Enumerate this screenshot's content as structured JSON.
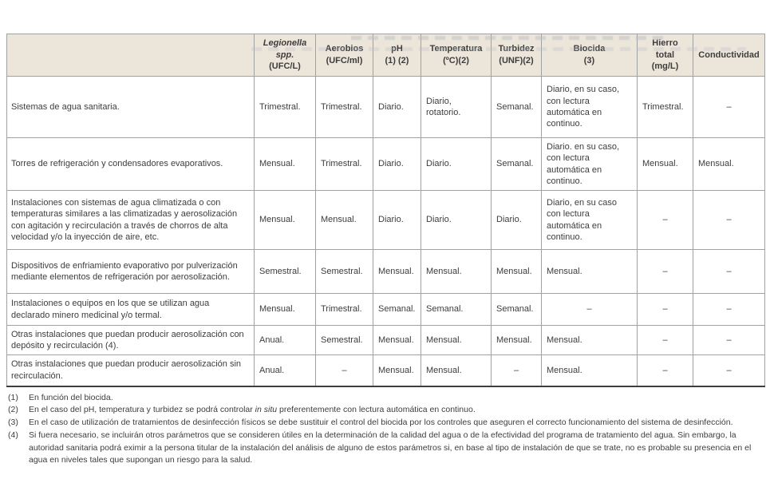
{
  "table": {
    "header": [
      {
        "lines": []
      },
      {
        "lines": [
          {
            "text": "Legionella",
            "italic": true
          },
          {
            "text": "spp.",
            "italic": true
          },
          {
            "text": "(UFC/L)",
            "italic": false
          }
        ]
      },
      {
        "lines": [
          {
            "text": "Aerobios",
            "italic": false
          },
          {
            "text": "(UFC/ml)",
            "italic": false
          }
        ]
      },
      {
        "lines": [
          {
            "text": "pH",
            "italic": false
          },
          {
            "text": "(1) (2)",
            "italic": false
          }
        ]
      },
      {
        "lines": [
          {
            "text": "Temperatura",
            "italic": false
          },
          {
            "text": "(ºC)(2)",
            "italic": false
          }
        ]
      },
      {
        "lines": [
          {
            "text": "Turbidez",
            "italic": false
          },
          {
            "text": "(UNF)(2)",
            "italic": false
          }
        ]
      },
      {
        "lines": [
          {
            "text": "Biocida",
            "italic": false
          },
          {
            "text": "(3)",
            "italic": false
          }
        ]
      },
      {
        "lines": [
          {
            "text": "Hierro",
            "italic": false
          },
          {
            "text": "total",
            "italic": false
          },
          {
            "text": "(mg/L)",
            "italic": false
          }
        ]
      },
      {
        "lines": [
          {
            "text": "Conductividad",
            "italic": false
          }
        ]
      }
    ],
    "rows": [
      {
        "label": "Sistemas de agua sanitaria.",
        "values": [
          "Trimestral.",
          "Trimestral.",
          "Diario.",
          "Diario, rotatorio.",
          "Semanal.",
          "Diario, en su caso, con lectura automática en continuo.",
          "Trimestral.",
          "–"
        ]
      },
      {
        "label": "Torres de refrigeración y condensadores evaporativos.",
        "values": [
          "Mensual.",
          "Trimestral.",
          "Diario.",
          "Diario.",
          "Semanal.",
          "Diario. en su caso, con lectura automática en continuo.",
          "Mensual.",
          "Mensual."
        ]
      },
      {
        "label": "Instalaciones con sistemas de agua climatizada o con temperaturas similares a las climatizadas y aerosolización con agitación y recirculación a través de chorros de alta velocidad y/o la inyección de aire, etc.",
        "values": [
          "Mensual.",
          "Mensual.",
          "Diario.",
          "Diario.",
          "Diario.",
          "Diario, en su caso con lectura automática en continuo.",
          "–",
          "–"
        ]
      },
      {
        "label": "Dispositivos de enfriamiento evaporativo por pulverización mediante elementos de refrigeración por aerosolización.",
        "values": [
          "Semestral.",
          "Semestral.",
          "Mensual.",
          "Mensual.",
          "Mensual.",
          "Mensual.",
          "–",
          "–"
        ]
      },
      {
        "label": "Instalaciones o equipos en los que se utilizan agua declarado minero medicinal y/o termal.",
        "values": [
          "Mensual.",
          "Trimestral.",
          "Semanal.",
          "Semanal.",
          "Semanal.",
          "–",
          "–",
          "–"
        ]
      },
      {
        "label": "Otras instalaciones que puedan producir aerosolización con depósito y recirculación (4).",
        "values": [
          "Anual.",
          "Semestral.",
          "Mensual.",
          "Mensual.",
          "Mensual.",
          "Mensual.",
          "–",
          "–"
        ]
      },
      {
        "label": "Otras instalaciones que puedan producir aerosolización sin recirculación.",
        "values": [
          "Anual.",
          "–",
          "Mensual.",
          "Mensual.",
          "–",
          "Mensual.",
          "–",
          "–"
        ]
      }
    ]
  },
  "footnotes": [
    {
      "marker": "(1)",
      "parts": [
        {
          "text": "En función del biocida.",
          "italic": false
        }
      ]
    },
    {
      "marker": "(2)",
      "parts": [
        {
          "text": "En el caso del pH, temperatura y turbidez se podrá controlar ",
          "italic": false
        },
        {
          "text": "in situ",
          "italic": true
        },
        {
          "text": " preferentemente con lectura automática en continuo.",
          "italic": false
        }
      ]
    },
    {
      "marker": "(3)",
      "parts": [
        {
          "text": "En el caso de utilización de tratamientos de desinfección físicos se debe sustituir el control del biocida por los controles que aseguren el correcto funcionamiento del sistema de desinfección.",
          "italic": false
        }
      ]
    },
    {
      "marker": "(4)",
      "parts": [
        {
          "text": "Si fuera necesario, se incluirán otros parámetros que se consideren útiles en la determinación de la calidad del agua o de la efectividad del programa de tratamiento del agua. Sin embargo, la autoridad sanitaria podrá eximir a la persona titular de la instalación del análisis de alguno de estos parámetros si, en base al tipo de instalación de que se trate, no es probable su presencia en el agua en niveles tales que supongan un riesgo para la salud.",
          "italic": false
        }
      ]
    }
  ],
  "colors": {
    "header_bg": "#ece5da",
    "grid_border": "#a1a1a1",
    "bottom_border": "#3e3e3e",
    "text": "#3d3d3d"
  }
}
